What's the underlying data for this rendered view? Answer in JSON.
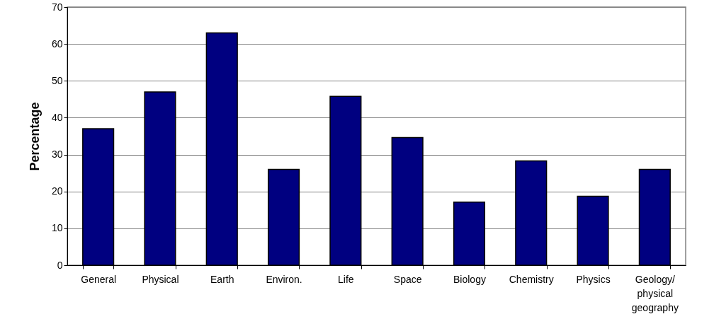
{
  "chart_data": {
    "type": "bar",
    "ylabel": "Percentage",
    "categories": [
      "General",
      "Physical",
      "Earth",
      "Environ.",
      "Life",
      "Space",
      "Biology",
      "Chemistry",
      "Physics",
      "Geology/ physical geography"
    ],
    "values": [
      37,
      47,
      63,
      26,
      45.8,
      34.6,
      17.1,
      28.3,
      18.7,
      26
    ],
    "color": "#000080",
    "ylim": [
      0,
      70
    ],
    "yticks": [
      0,
      10,
      20,
      30,
      40,
      50,
      60,
      70
    ],
    "grid": "y"
  }
}
